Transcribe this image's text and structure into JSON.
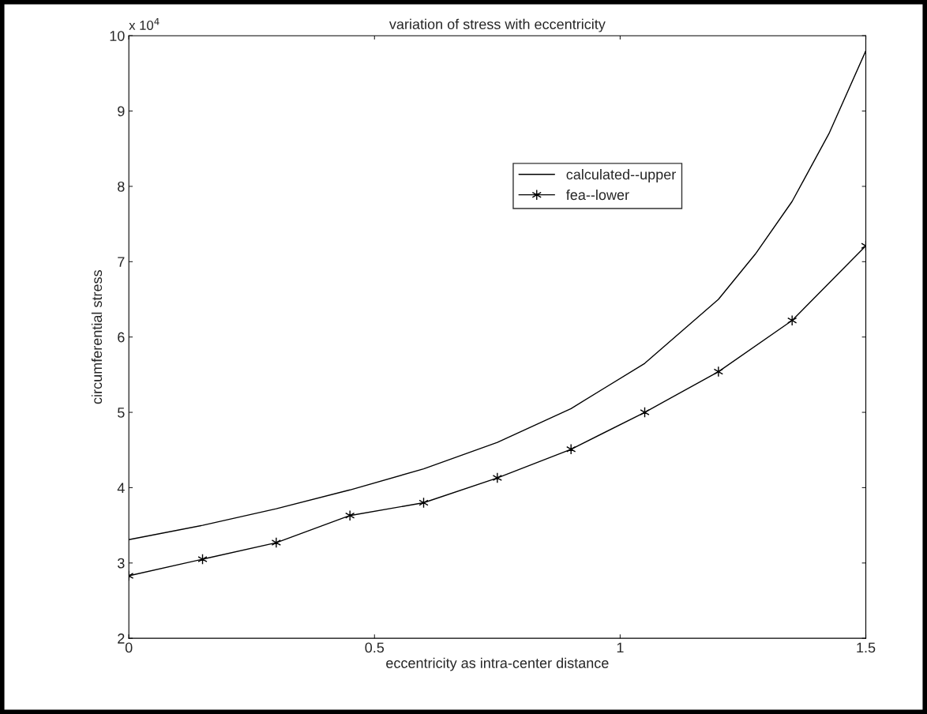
{
  "chart_data": {
    "type": "line",
    "title": "variation of stress with eccentricity",
    "xlabel": "eccentricity as intra-center distance",
    "ylabel": "circumferential stress",
    "annotations": [
      "x 10$^{4}$"
    ],
    "series": [
      {
        "name": "calculated--upper",
        "color": "#000000",
        "marker": "none",
        "x": [
          0,
          0.15,
          0.3,
          0.45,
          0.6,
          0.75,
          0.9,
          1.05,
          1.2,
          1.275,
          1.35,
          1.425,
          1.5
        ],
        "values": [
          3.31,
          3.5,
          3.72,
          3.97,
          4.25,
          4.6,
          5.05,
          5.65,
          6.5,
          7.1,
          7.8,
          8.7,
          9.8
        ]
      },
      {
        "name": "fea--lower",
        "color": "#000000",
        "marker": "cross",
        "x": [
          0,
          0.15,
          0.3,
          0.45,
          0.6,
          0.75,
          0.9,
          1.05,
          1.2,
          1.35,
          1.5
        ],
        "values": [
          2.83,
          3.05,
          3.27,
          3.63,
          3.8,
          4.13,
          4.51,
          5.0,
          5.54,
          6.22,
          7.21
        ]
      }
    ],
    "xlim": [
      0,
      1.5
    ],
    "xticks": [
      0,
      0.5,
      1,
      1.5
    ],
    "ylim": [
      2,
      10
    ],
    "yticks": [
      2,
      3,
      4,
      5,
      6,
      7,
      8,
      9,
      10
    ],
    "grid": false,
    "legend": "top right"
  }
}
